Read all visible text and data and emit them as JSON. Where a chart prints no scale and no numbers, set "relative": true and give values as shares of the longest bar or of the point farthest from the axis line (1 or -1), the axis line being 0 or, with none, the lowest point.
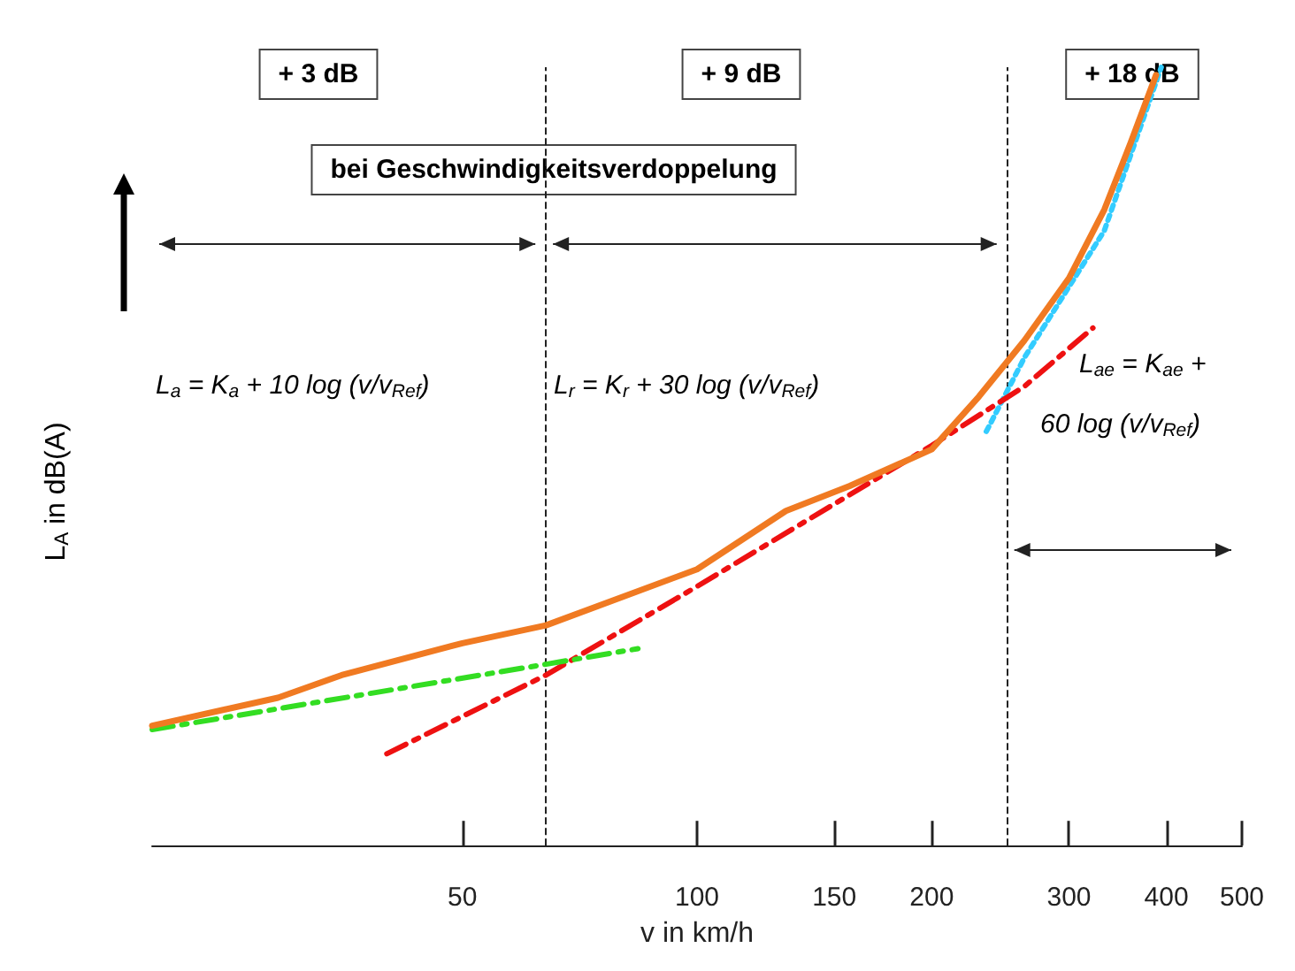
{
  "chart_data": {
    "type": "line",
    "relative": true,
    "xlabel": "v in km/h",
    "ylabel": "L$_{A}$ in dB(A)",
    "log": "x",
    "xlim": [
      20,
      500
    ],
    "xticks": [
      50,
      100,
      150,
      200,
      300,
      400,
      500
    ],
    "grid": false,
    "marker": "none",
    "series": [
      {
        "color": "#f07a22",
        "line_style": "solid",
        "x": [
          20,
          29,
          35,
          50,
          64,
          100,
          130,
          157,
          200,
          230,
          263,
          300,
          333,
          360,
          388
        ],
        "values": [
          0.154,
          0.19,
          0.219,
          0.26,
          0.283,
          0.355,
          0.43,
          0.462,
          0.509,
          0.577,
          0.649,
          0.729,
          0.817,
          0.903,
          0.99
        ]
      },
      {
        "color": "#33dd22",
        "line_style": "dashed",
        "x": [
          20,
          64,
          84
        ],
        "values": [
          0.149,
          0.233,
          0.253
        ]
      },
      {
        "color": "#ee1111",
        "line_style": "dashed",
        "x": [
          40,
          64,
          100,
          200,
          263,
          322
        ],
        "values": [
          0.118,
          0.219,
          0.333,
          0.514,
          0.59,
          0.665
        ]
      },
      {
        "color": "#33ccff",
        "line_style": "dotted",
        "x": [
          235,
          263,
          333,
          394
        ],
        "values": [
          0.532,
          0.627,
          0.79,
          1
        ]
      }
    ],
    "ref_lines": [
      {
        "axis": "x",
        "value": 64,
        "line_style": "dashed"
      },
      {
        "axis": "x",
        "value": 250,
        "line_style": "dashed"
      }
    ],
    "annotations": [
      "+ 3 dB",
      "+ 9 dB",
      "+ 18 dB",
      "bei Geschwindigkeitsverdoppelung",
      "L$_{a}$ = K$_{a}$ + 10 log (v/v$_{Ref}$)",
      "L$_{r}$ = K$_{r}$ + 30 log (v/v$_{Ref}$)",
      "L$_{ae}$ = K$_{ae}$ + 60 log (v/v$_{Ref}$)"
    ]
  }
}
